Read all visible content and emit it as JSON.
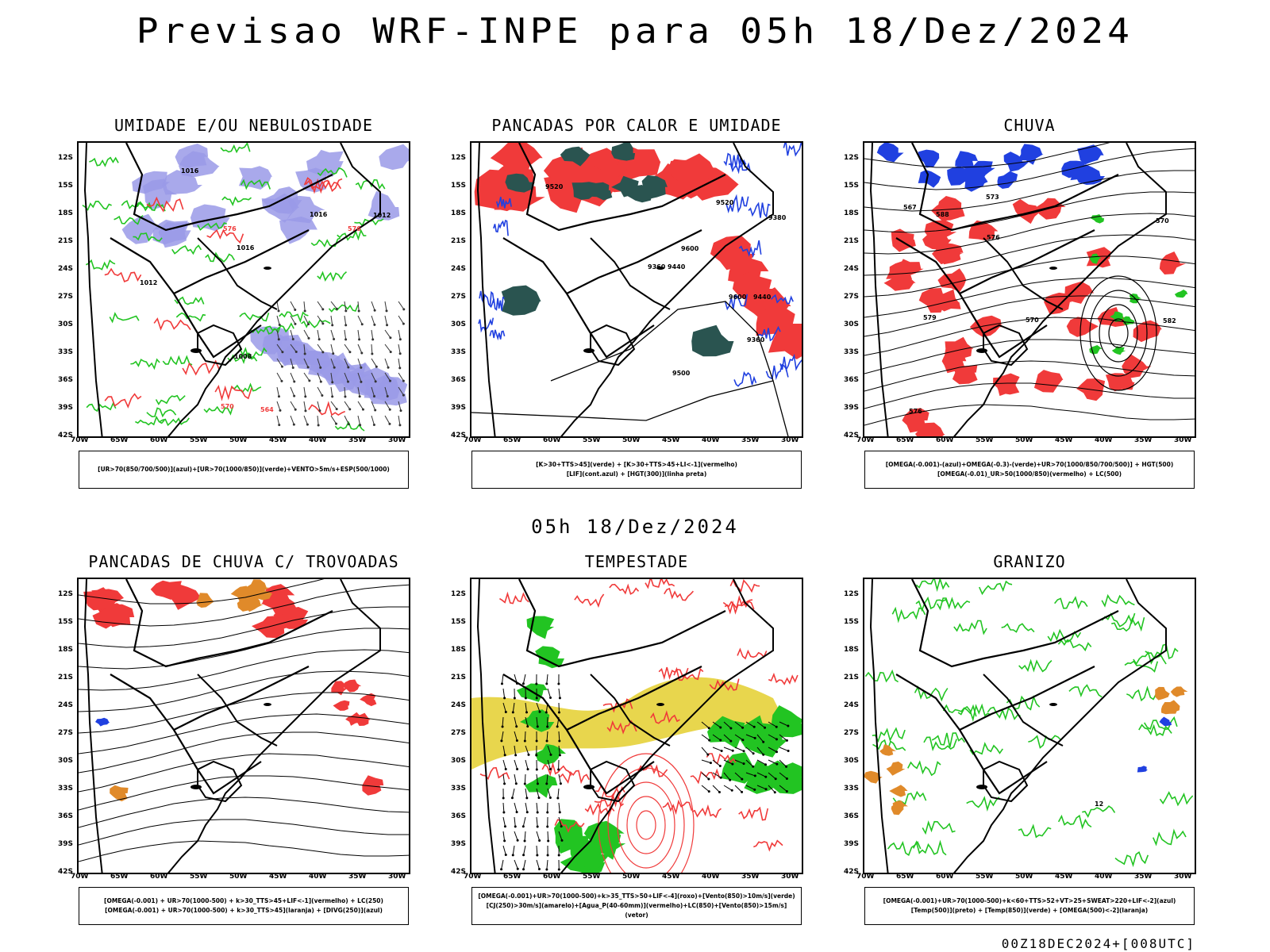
{
  "header": {
    "title": "Previsao WRF-INPE  para 05h 18/Dez/2024",
    "mid_title": "05h 18/Dez/2024",
    "footer": "00Z18DEC2024+[008UTC]"
  },
  "axes": {
    "lat_labels": [
      "12S",
      "15S",
      "18S",
      "21S",
      "24S",
      "27S",
      "30S",
      "33S",
      "36S",
      "39S",
      "42S"
    ],
    "lon_labels": [
      "70W",
      "65W",
      "60W",
      "55W",
      "50W",
      "45W",
      "40W",
      "35W",
      "30W"
    ]
  },
  "panels": [
    {
      "title": "UMIDADE E/OU NEBULOSIDADE",
      "legend": [
        "[UR>70(850/700/500)](azul)+[UR>70(1000/850)](verde)+VENTO>5m/s+ESP(500/1000)"
      ],
      "labels": [
        "1012",
        "1016",
        "1016",
        "1016",
        "1008",
        "1012",
        "576",
        "576",
        "570",
        "564"
      ]
    },
    {
      "title": "PANCADAS POR CALOR E UMIDADE",
      "legend": [
        "[K>30+TTS>45](verde)  +  [K>30+TTS>45+LI<-1](vermelho)",
        "[LIF](cont.azul)  +  [HGT(300)](linha preta)"
      ],
      "labels": [
        "9600",
        "9500",
        "9520",
        "9440",
        "9440",
        "9360",
        "9360",
        "9380",
        "9520",
        "9600"
      ]
    },
    {
      "title": "CHUVA",
      "legend": [
        "[OMEGA(-0.001)-(azul)+OMEGA(-0.3)-(verde)+UR>70(1000/850/700/500)]  +  HGT(500)",
        "[OMEGA(-0.01)_UR>50(1000/850)(vermelho)  +  LC(500)"
      ],
      "labels": [
        "588",
        "582",
        "576",
        "570",
        "576",
        "579",
        "573",
        "567",
        "570"
      ]
    },
    {
      "title": "PANCADAS DE CHUVA C/ TROVOADAS",
      "legend": [
        "[OMEGA(-0.001)  +  UR>70(1000-500)  +  k>30_TTS>45+LIF<-1](vermelho)  +  LC(250)",
        "[OMEGA(-0.001)  +  UR>70(1000-500)  +  k>30_TTS>45](laranja)  +  [DIVG(250)](azul)"
      ],
      "labels": []
    },
    {
      "title": "TEMPESTADE",
      "legend": [
        "[OMEGA(-0.001)+UR>70(1000-500)+k>35_TTS>50+LIF<-4](roxo)+[Vento(850)>10m/s](verde)",
        "[CJ(250)>30m/s](amarelo)+[Agua_P(40-60mm)](vermelho)+LC(850)+[Vento(850)>15m/s](vetor)"
      ],
      "labels": []
    },
    {
      "title": "GRANIZO",
      "legend": [
        "[OMEGA(-0.001)+UR>70(1000-500)+k<60+TTS>52+VT>25+SWEAT>220+LIF<-2](azul)",
        "[Temp(500)](preto)  +  [Temp(850)](verde)  +  [OMEGA(500)<-2](laranja)"
      ],
      "labels": [
        "12"
      ]
    }
  ],
  "colors": {
    "green": "#22c422",
    "blue": "#2040e0",
    "red": "#f03a3a",
    "dark_teal": "#2a5450",
    "lavender": "#9a9ae8",
    "yellow": "#e6d23a",
    "orange": "#e08a2a",
    "black": "#000000"
  }
}
